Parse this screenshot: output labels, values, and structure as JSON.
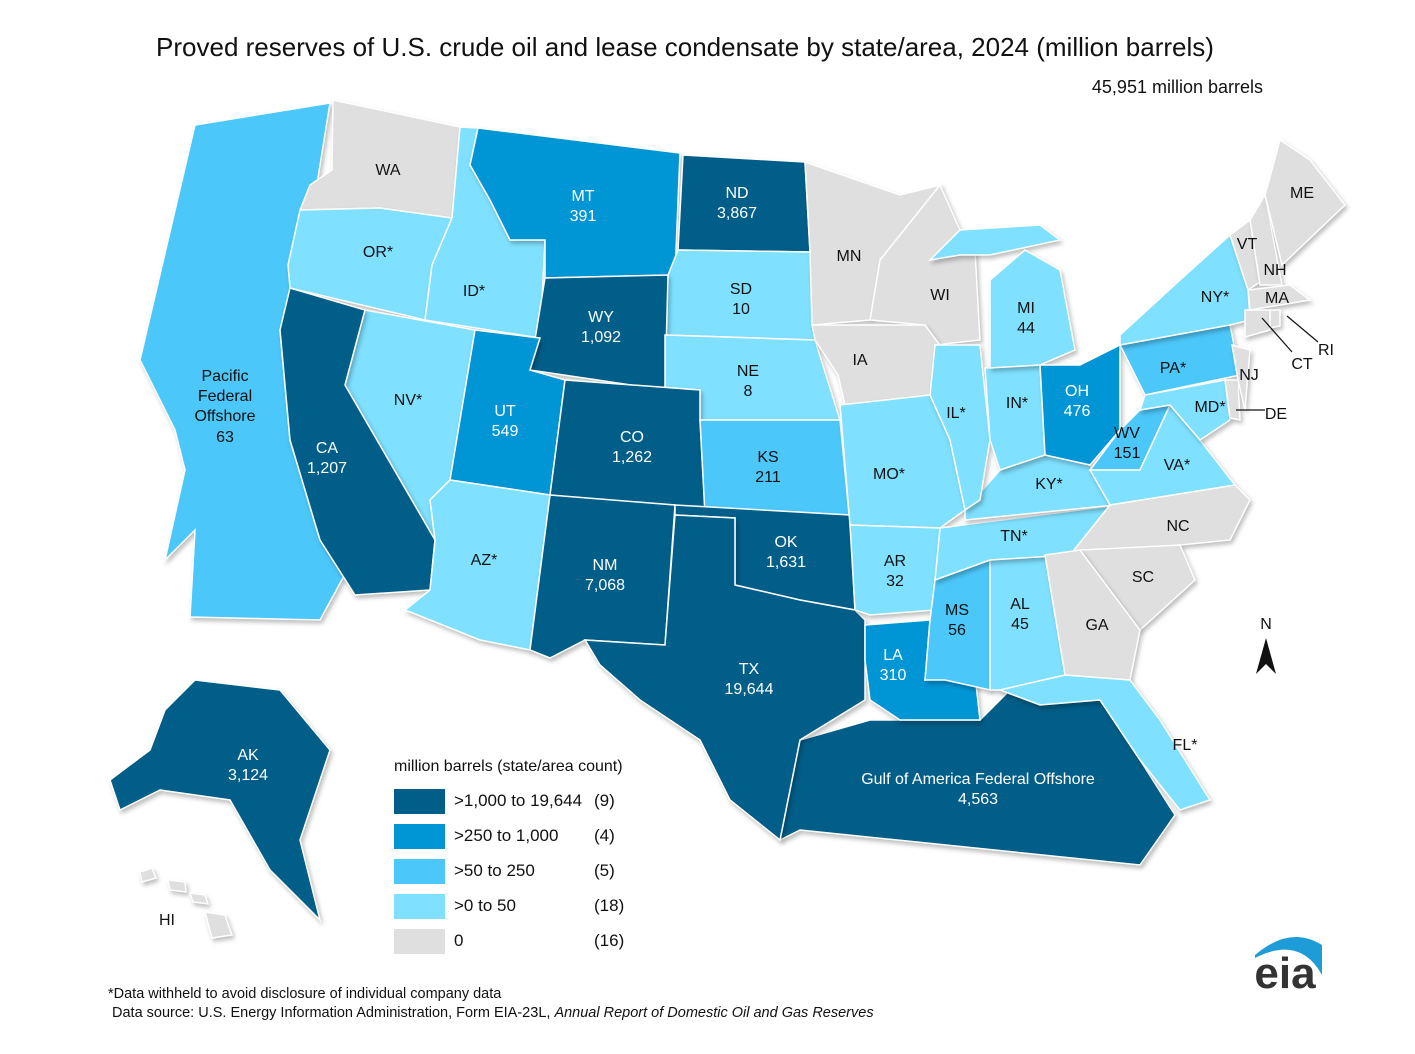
{
  "title": "Proved reserves of U.S. crude oil and lease condensate by state/area, 2024 (million barrels)",
  "total": "45,951 million barrels",
  "colors": {
    "c4": "#005E88",
    "c3": "#0096D6",
    "c2": "#4CC7FA",
    "c1": "#7FE1FF",
    "c0": "#DFDFDF"
  },
  "legend": {
    "title": "million barrels (state/area count)",
    "items": [
      {
        "key": "c4",
        "range": ">1,000 to 19,644",
        "count": "(9)"
      },
      {
        "key": "c3",
        "range": ">250 to 1,000",
        "count": "(4)"
      },
      {
        "key": "c2",
        "range": ">50 to 250",
        "count": "(5)"
      },
      {
        "key": "c1",
        "range": ">0 to 50",
        "count": "(18)"
      },
      {
        "key": "c0",
        "range": "0",
        "count": "(16)"
      }
    ]
  },
  "states": {
    "PFO": {
      "name": "Pacific Federal Offshore",
      "l1": "Pacific",
      "l2": "Federal",
      "l3": "Offshore",
      "value": "63",
      "cat": "c2"
    },
    "WA": {
      "abbr": "WA",
      "value": "",
      "cat": "c0"
    },
    "OR": {
      "abbr": "OR*",
      "value": "",
      "cat": "c1"
    },
    "ID": {
      "abbr": "ID*",
      "value": "",
      "cat": "c1"
    },
    "MT": {
      "abbr": "MT",
      "value": "391",
      "cat": "c3"
    },
    "ND": {
      "abbr": "ND",
      "value": "3,867",
      "cat": "c4"
    },
    "SD": {
      "abbr": "SD",
      "value": "10",
      "cat": "c1"
    },
    "WY": {
      "abbr": "WY",
      "value": "1,092",
      "cat": "c4"
    },
    "NE": {
      "abbr": "NE",
      "value": "8",
      "cat": "c1"
    },
    "CA": {
      "abbr": "CA",
      "value": "1,207",
      "cat": "c4"
    },
    "NV": {
      "abbr": "NV*",
      "value": "",
      "cat": "c1"
    },
    "UT": {
      "abbr": "UT",
      "value": "549",
      "cat": "c3"
    },
    "AZ": {
      "abbr": "AZ*",
      "value": "",
      "cat": "c1"
    },
    "CO": {
      "abbr": "CO",
      "value": "1,262",
      "cat": "c4"
    },
    "NM": {
      "abbr": "NM",
      "value": "7,068",
      "cat": "c4"
    },
    "KS": {
      "abbr": "KS",
      "value": "211",
      "cat": "c2"
    },
    "OK": {
      "abbr": "OK",
      "value": "1,631",
      "cat": "c4"
    },
    "TX": {
      "abbr": "TX",
      "value": "19,644",
      "cat": "c4"
    },
    "MN": {
      "abbr": "MN",
      "value": "",
      "cat": "c0"
    },
    "WI": {
      "abbr": "WI",
      "value": "",
      "cat": "c0"
    },
    "IA": {
      "abbr": "IA",
      "value": "",
      "cat": "c0"
    },
    "MO": {
      "abbr": "MO*",
      "value": "",
      "cat": "c1"
    },
    "AR": {
      "abbr": "AR",
      "value": "32",
      "cat": "c1"
    },
    "LA": {
      "abbr": "LA",
      "value": "310",
      "cat": "c3"
    },
    "MS": {
      "abbr": "MS",
      "value": "56",
      "cat": "c2"
    },
    "AL": {
      "abbr": "AL",
      "value": "45",
      "cat": "c1"
    },
    "TN": {
      "abbr": "TN*",
      "value": "",
      "cat": "c1"
    },
    "KY": {
      "abbr": "KY*",
      "value": "",
      "cat": "c1"
    },
    "IL": {
      "abbr": "IL*",
      "value": "",
      "cat": "c1"
    },
    "IN": {
      "abbr": "IN*",
      "value": "",
      "cat": "c1"
    },
    "MI": {
      "abbr": "MI",
      "value": "44",
      "cat": "c1"
    },
    "OH": {
      "abbr": "OH",
      "value": "476",
      "cat": "c3"
    },
    "WV": {
      "abbr": "WV",
      "value": "151",
      "cat": "c2"
    },
    "PA": {
      "abbr": "PA*",
      "value": "",
      "cat": "c2"
    },
    "NY": {
      "abbr": "NY*",
      "value": "",
      "cat": "c1"
    },
    "VA": {
      "abbr": "VA*",
      "value": "",
      "cat": "c1"
    },
    "MD": {
      "abbr": "MD*",
      "value": "",
      "cat": "c1"
    },
    "DE": {
      "abbr": "DE",
      "value": "",
      "cat": "c0"
    },
    "NJ": {
      "abbr": "NJ",
      "value": "",
      "cat": "c0"
    },
    "NC": {
      "abbr": "NC",
      "value": "",
      "cat": "c0"
    },
    "SC": {
      "abbr": "SC",
      "value": "",
      "cat": "c0"
    },
    "GA": {
      "abbr": "GA",
      "value": "",
      "cat": "c0"
    },
    "FL": {
      "abbr": "FL*",
      "value": "",
      "cat": "c1"
    },
    "GOA": {
      "name": "Gulf of America Federal Offshore",
      "value": "4,563",
      "cat": "c4"
    },
    "VT": {
      "abbr": "VT",
      "value": "",
      "cat": "c0"
    },
    "NH": {
      "abbr": "NH",
      "value": "",
      "cat": "c0"
    },
    "ME": {
      "abbr": "ME",
      "value": "",
      "cat": "c0"
    },
    "MA": {
      "abbr": "MA",
      "value": "",
      "cat": "c0"
    },
    "CT": {
      "abbr": "CT",
      "value": "",
      "cat": "c0"
    },
    "RI": {
      "abbr": "RI",
      "value": "",
      "cat": "c0"
    },
    "AK": {
      "abbr": "AK",
      "value": "3,124",
      "cat": "c4"
    },
    "HI": {
      "abbr": "HI",
      "value": "",
      "cat": "c0"
    }
  },
  "compass": "N",
  "logo": "eia",
  "footnote": "*Data withheld to avoid disclosure of individual company data",
  "source_prefix": "Data source: U.S. Energy Information Administration, Form EIA-23L, ",
  "source_title": "Annual Report of Domestic Oil and Gas Reserves"
}
